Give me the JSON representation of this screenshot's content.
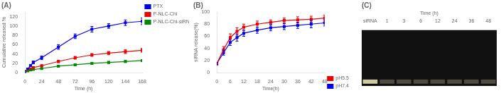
{
  "chart_data": [
    {
      "type": "line",
      "title": "(A)",
      "xlabel": "Time (h)",
      "ylabel": "Cumulative released %",
      "xlim": [
        0,
        168
      ],
      "ylim": [
        0,
        130
      ],
      "xticks": [
        0,
        24,
        48,
        72,
        96,
        120,
        144,
        168
      ],
      "yticks": [
        0,
        20,
        40,
        60,
        80,
        100,
        120
      ],
      "grid": false,
      "legend": "upper right",
      "marker": "square",
      "line_style": "solid",
      "x": [
        0,
        4,
        8,
        12,
        24,
        48,
        72,
        96,
        120,
        144,
        168
      ],
      "series": [
        {
          "name": "PTX",
          "color": "#0000EE",
          "values": [
            2,
            8,
            15,
            22,
            32,
            55,
            78,
            93,
            100,
            107,
            110
          ],
          "yerr": [
            0.5,
            1.5,
            2,
            3,
            4,
            5,
            5,
            6,
            5,
            6,
            7
          ]
        },
        {
          "name": "P-NLC-Chi",
          "color": "#EE0000",
          "values": [
            2,
            5,
            8,
            11,
            15,
            24,
            32,
            38,
            42,
            45,
            48
          ],
          "yerr": [
            0.5,
            1,
            1.5,
            2,
            2,
            2.5,
            3,
            3,
            3.5,
            4,
            4
          ]
        },
        {
          "name": "P-NLC-Chi-siRNA",
          "color": "#008800",
          "values": [
            2,
            4,
            6,
            7,
            9,
            14,
            17,
            20,
            22,
            24,
            26
          ],
          "yerr": [
            0.5,
            0.8,
            1,
            1,
            1.5,
            1.5,
            2,
            2,
            2,
            2,
            2
          ]
        }
      ]
    },
    {
      "type": "line",
      "title": "(B)",
      "xlabel": "Time(h)",
      "ylabel": "siRNA release(%)",
      "xlim": [
        0,
        48
      ],
      "ylim": [
        0,
        100
      ],
      "xticks": [
        0,
        6,
        12,
        18,
        24,
        30,
        36,
        42,
        48
      ],
      "yticks": [
        0,
        20,
        40,
        60,
        80,
        100
      ],
      "grid": false,
      "legend": "lower right",
      "marker": "square",
      "line_style": "solid",
      "x": [
        0,
        3,
        6,
        9,
        12,
        18,
        24,
        30,
        36,
        42,
        48
      ],
      "series": [
        {
          "name": "pH5.5",
          "color": "#EE0000",
          "values": [
            15,
            38,
            58,
            68,
            75,
            80,
            83,
            86,
            87,
            88,
            90
          ],
          "yerr": [
            2,
            5,
            6,
            6,
            5,
            5,
            4,
            4,
            5,
            5,
            5
          ]
        },
        {
          "name": "pH7.4",
          "color": "#0000EE",
          "values": [
            15,
            33,
            50,
            58,
            65,
            70,
            74,
            76,
            78,
            80,
            82
          ],
          "yerr": [
            2,
            4,
            5,
            6,
            5,
            5,
            5,
            5,
            5,
            6,
            5
          ]
        }
      ]
    },
    {
      "type": "gel",
      "title": "(C)",
      "xlabel": "Time (h)",
      "categories": [
        "siRNA",
        "1",
        "3",
        "6",
        "12",
        "24",
        "36",
        "48"
      ],
      "color": "#111111",
      "colors": [
        "#d0c8a0",
        "#d0c8a0",
        "#d0c8a0",
        "#d0c8a0",
        "#d0c8a0",
        "#d0c8a0",
        "#d0c8a0",
        "#d0c8a0"
      ]
    }
  ]
}
